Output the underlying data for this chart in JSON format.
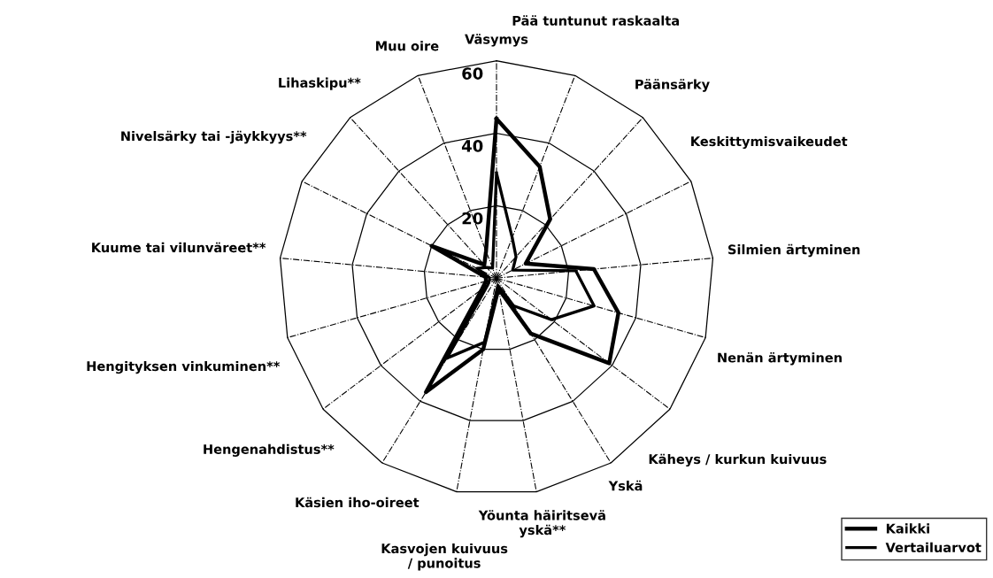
{
  "chart_data": {
    "type": "radar",
    "categories": [
      "Väsymys",
      "Pää tuntunut raskaalta",
      "Päänsärky",
      "Keskittymisvaikeudet",
      "Silmien ärtyminen",
      "Nenän ärtyminen",
      "Käheys / kurkun kuivuus",
      "Yskä",
      "Yöunta häiritsevä yskä**",
      "Kasvojen kuivuus / punoitus",
      "Käsien iho-oireet",
      "Hengenahdistus**",
      "Hengityksen vinkuminen**",
      "Kuume tai vilunväreet**",
      "Nivelsärky tai -jäykkyys**",
      "Lihaskipu**",
      "Muu oire"
    ],
    "series": [
      {
        "name": "Kaikki",
        "color": "#000000",
        "values": [
          44,
          33,
          22,
          9,
          27,
          35,
          39,
          18,
          3,
          20,
          37,
          5,
          3,
          3,
          20,
          5,
          8
        ]
      },
      {
        "name": "Vertailuarvot",
        "color": "#000000",
        "values": [
          29,
          12,
          8,
          5,
          22,
          28,
          19,
          9,
          2,
          18,
          26,
          3,
          2,
          2,
          6,
          4,
          3
        ]
      }
    ],
    "ylim": [
      0,
      60
    ],
    "yticks": [
      20,
      40,
      60
    ],
    "grid": true,
    "legend": "bottom right",
    "marker": "none",
    "line_style": "solid"
  }
}
